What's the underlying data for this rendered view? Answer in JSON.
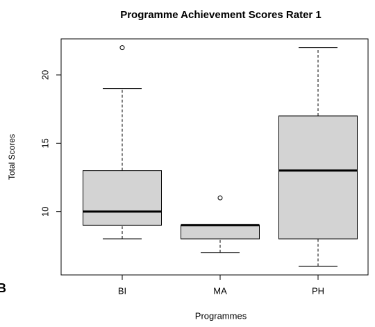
{
  "chart_data": {
    "type": "boxplot",
    "title": "Programme Achievement Scores Rater 1",
    "xlabel": "Programmes",
    "ylabel": "Total Scores",
    "panel_label": "B",
    "categories": [
      "BI",
      "MA",
      "PH"
    ],
    "boxes": [
      {
        "min": 8,
        "q1": 9,
        "median": 10,
        "q3": 13,
        "max": 19,
        "outliers": [
          22
        ]
      },
      {
        "min": 7,
        "q1": 8,
        "median": 9,
        "q3": 9,
        "max": 9,
        "outliers": [
          11
        ]
      },
      {
        "min": 6,
        "q1": 8,
        "median": 13,
        "q3": 17,
        "max": 22,
        "outliers": []
      }
    ],
    "color": "#d3d3d3",
    "ylim": [
      5.36,
      22.64
    ],
    "yticks": [
      10,
      15,
      20
    ]
  }
}
